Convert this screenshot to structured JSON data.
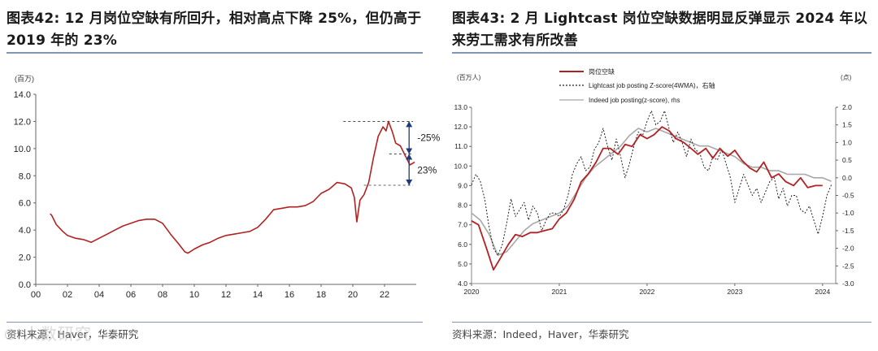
{
  "left": {
    "title": "图表42:  12 月岗位空缺有所回升，相对高点下降 25%，但仍高于 2019 年的 23%",
    "source": "资料来源：Haver，华泰研究",
    "watermark": "人数研究"
  },
  "right": {
    "title": "图表43:  2 月 Lightcast 岗位空缺数据明显反弹显示 2024 年以来劳工需求有所改善",
    "source": "资料来源：Indeed，Haver，华泰研究"
  },
  "colors": {
    "accent": "#b22222",
    "annotation_arrow": "#1f3a7a",
    "rule": "#7f96b6"
  },
  "chart_data": [
    {
      "type": "line",
      "unit_label": "(百万)",
      "ylim": [
        0,
        14
      ],
      "yticks": [
        "0.0",
        "2.0",
        "4.0",
        "6.0",
        "8.0",
        "10.0",
        "12.0",
        "14.0"
      ],
      "xlim": [
        2000,
        2024
      ],
      "xticks": [
        "00",
        "02",
        "04",
        "06",
        "08",
        "10",
        "12",
        "14",
        "16",
        "18",
        "20",
        "22"
      ],
      "series": [
        {
          "color": "#b22222",
          "x": [
            2000.9,
            2001.0,
            2001.3,
            2001.7,
            2002.0,
            2002.5,
            2003.0,
            2003.5,
            2004.0,
            2004.5,
            2005.0,
            2005.5,
            2006.0,
            2006.5,
            2007.0,
            2007.5,
            2008.0,
            2008.5,
            2009.0,
            2009.4,
            2009.6,
            2010.0,
            2010.5,
            2011.0,
            2011.5,
            2012.0,
            2012.5,
            2013.0,
            2013.5,
            2014.0,
            2014.5,
            2015.0,
            2015.5,
            2016.0,
            2016.5,
            2017.0,
            2017.5,
            2018.0,
            2018.5,
            2019.0,
            2019.5,
            2019.9,
            2020.1,
            2020.25,
            2020.45,
            2020.7,
            2021.0,
            2021.3,
            2021.6,
            2021.9,
            2022.1,
            2022.25,
            2022.5,
            2022.7,
            2023.0,
            2023.3,
            2023.6,
            2023.9
          ],
          "values": [
            5.2,
            5.1,
            4.4,
            3.9,
            3.6,
            3.4,
            3.3,
            3.1,
            3.4,
            3.7,
            4.0,
            4.3,
            4.5,
            4.7,
            4.8,
            4.8,
            4.5,
            3.7,
            3.0,
            2.4,
            2.3,
            2.6,
            2.9,
            3.1,
            3.4,
            3.6,
            3.7,
            3.8,
            3.9,
            4.2,
            4.8,
            5.5,
            5.6,
            5.7,
            5.7,
            5.8,
            6.1,
            6.7,
            7.0,
            7.5,
            7.4,
            7.1,
            6.4,
            4.6,
            6.2,
            6.6,
            7.5,
            9.3,
            10.9,
            11.6,
            11.3,
            12.0,
            11.2,
            10.4,
            10.2,
            9.5,
            8.8,
            9.0
          ]
        }
      ],
      "annotations": [
        {
          "text": "-25%"
        },
        {
          "text": "23%"
        }
      ],
      "ref_levels": [
        12.0,
        9.6,
        7.3
      ]
    },
    {
      "type": "line",
      "unit_label": "(百万人)",
      "unit_label_right": "(点)",
      "ylim": [
        4.0,
        13.0
      ],
      "yticks": [
        "4.0",
        "5.0",
        "6.0",
        "7.0",
        "8.0",
        "9.0",
        "10.0",
        "11.0",
        "12.0",
        "13.0"
      ],
      "y2lim": [
        -3.0,
        2.0
      ],
      "y2ticks": [
        "-3.0",
        "-2.5",
        "-2.0",
        "-1.5",
        "-1.0",
        "-0.5",
        "0.0",
        "0.5",
        "1.0",
        "1.5",
        "2.0"
      ],
      "xlim": [
        2020,
        2024.15
      ],
      "xticks": [
        "2020",
        "2021",
        "2022",
        "2023",
        "2024"
      ],
      "legend_position": "top-center",
      "series": [
        {
          "name": "岗位空缺",
          "axis": "left",
          "style": "solid",
          "color": "#b22222",
          "x": [
            2020.0,
            2020.08,
            2020.17,
            2020.25,
            2020.33,
            2020.42,
            2020.5,
            2020.58,
            2020.67,
            2020.75,
            2020.83,
            2020.92,
            2021.0,
            2021.08,
            2021.17,
            2021.25,
            2021.33,
            2021.42,
            2021.5,
            2021.58,
            2021.67,
            2021.75,
            2021.83,
            2021.92,
            2022.0,
            2022.08,
            2022.17,
            2022.25,
            2022.33,
            2022.42,
            2022.5,
            2022.58,
            2022.67,
            2022.75,
            2022.83,
            2022.92,
            2023.0,
            2023.08,
            2023.17,
            2023.25,
            2023.33,
            2023.42,
            2023.5,
            2023.58,
            2023.67,
            2023.75,
            2023.83,
            2023.92,
            2024.0
          ],
          "values": [
            7.2,
            7.0,
            5.8,
            4.7,
            5.3,
            6.0,
            6.5,
            6.4,
            6.6,
            6.6,
            6.7,
            6.8,
            7.3,
            7.6,
            8.3,
            9.2,
            9.6,
            10.2,
            10.9,
            10.9,
            10.6,
            11.1,
            11.0,
            11.6,
            11.4,
            11.6,
            12.0,
            11.8,
            11.4,
            11.2,
            10.9,
            10.6,
            10.9,
            10.4,
            10.9,
            10.5,
            10.8,
            10.3,
            9.9,
            9.7,
            10.2,
            9.4,
            9.6,
            9.2,
            9.0,
            9.4,
            8.9,
            9.0,
            9.0
          ]
        },
        {
          "name": "Lightcast job posting Z-score(4WMA)，右轴",
          "axis": "right",
          "style": "dotted",
          "color": "#222222",
          "x": [
            2020.0,
            2020.05,
            2020.1,
            2020.15,
            2020.2,
            2020.25,
            2020.3,
            2020.35,
            2020.4,
            2020.45,
            2020.5,
            2020.55,
            2020.6,
            2020.65,
            2020.7,
            2020.75,
            2020.8,
            2020.85,
            2020.9,
            2020.95,
            2021.0,
            2021.05,
            2021.1,
            2021.15,
            2021.2,
            2021.25,
            2021.3,
            2021.35,
            2021.4,
            2021.45,
            2021.5,
            2021.55,
            2021.6,
            2021.65,
            2021.7,
            2021.75,
            2021.8,
            2021.85,
            2021.9,
            2021.95,
            2022.0,
            2022.05,
            2022.1,
            2022.15,
            2022.2,
            2022.25,
            2022.3,
            2022.35,
            2022.4,
            2022.45,
            2022.5,
            2022.55,
            2022.6,
            2022.65,
            2022.7,
            2022.75,
            2022.8,
            2022.85,
            2022.9,
            2022.95,
            2023.0,
            2023.05,
            2023.1,
            2023.15,
            2023.2,
            2023.25,
            2023.3,
            2023.35,
            2023.4,
            2023.45,
            2023.5,
            2023.55,
            2023.6,
            2023.65,
            2023.7,
            2023.75,
            2023.8,
            2023.85,
            2023.9,
            2023.95,
            2024.0,
            2024.05,
            2024.1
          ],
          "values": [
            -0.2,
            0.1,
            -0.1,
            -0.6,
            -1.4,
            -2.0,
            -2.2,
            -1.9,
            -1.3,
            -0.6,
            -1.1,
            -0.9,
            -0.7,
            -1.2,
            -0.8,
            -1.0,
            -1.5,
            -1.2,
            -1.0,
            -1.0,
            -1.1,
            -0.9,
            -0.5,
            0.1,
            0.4,
            0.6,
            0.2,
            0.3,
            0.8,
            1.0,
            1.4,
            0.9,
            0.5,
            1.1,
            0.6,
            0.0,
            0.4,
            0.9,
            1.3,
            1.2,
            1.6,
            1.9,
            1.5,
            1.6,
            1.9,
            1.4,
            1.0,
            1.3,
            1.0,
            0.6,
            1.1,
            0.8,
            0.7,
            0.3,
            0.2,
            0.6,
            0.5,
            0.8,
            0.4,
            0.0,
            -0.7,
            -0.3,
            0.1,
            -0.2,
            -0.5,
            -0.3,
            -0.7,
            -0.4,
            -0.1,
            0.0,
            -0.6,
            -0.3,
            -0.8,
            -0.5,
            -0.5,
            -0.9,
            -1.0,
            -0.8,
            -1.2,
            -1.6,
            -1.1,
            -0.5,
            -0.2
          ]
        },
        {
          "name": "Indeed job posting(z-score), rhs",
          "axis": "right",
          "style": "solid",
          "color": "#a8a8a8",
          "x": [
            2020.0,
            2020.1,
            2020.2,
            2020.3,
            2020.4,
            2020.5,
            2020.6,
            2020.7,
            2020.8,
            2020.9,
            2021.0,
            2021.1,
            2021.2,
            2021.3,
            2021.4,
            2021.5,
            2021.6,
            2021.7,
            2021.8,
            2021.9,
            2022.0,
            2022.1,
            2022.2,
            2022.3,
            2022.4,
            2022.5,
            2022.6,
            2022.7,
            2022.8,
            2022.9,
            2023.0,
            2023.1,
            2023.2,
            2023.3,
            2023.4,
            2023.5,
            2023.6,
            2023.7,
            2023.8,
            2023.9,
            2024.0,
            2024.1
          ],
          "values": [
            -1.0,
            -1.2,
            -1.6,
            -2.2,
            -2.1,
            -1.8,
            -1.5,
            -1.3,
            -1.2,
            -1.1,
            -1.0,
            -0.8,
            -0.4,
            0.0,
            0.3,
            0.5,
            0.7,
            0.9,
            1.2,
            1.4,
            1.3,
            1.4,
            1.3,
            1.2,
            1.1,
            1.0,
            0.9,
            0.9,
            0.8,
            0.7,
            0.6,
            0.4,
            0.3,
            0.3,
            0.2,
            0.2,
            0.1,
            0.1,
            0.1,
            0.0,
            0.0,
            -0.1
          ]
        }
      ]
    }
  ]
}
